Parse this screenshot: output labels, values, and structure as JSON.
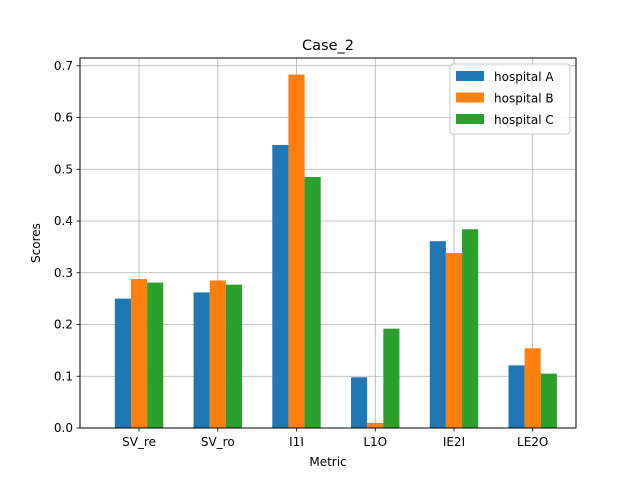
{
  "chart_data": {
    "type": "bar",
    "title": "Case_2",
    "xlabel": "Metric",
    "ylabel": "Scores",
    "categories": [
      "SV_re",
      "SV_ro",
      "I1I",
      "L1O",
      "IE2I",
      "LE2O"
    ],
    "series": [
      {
        "name": "hospital A",
        "color": "#1f77b4",
        "values": [
          0.25,
          0.262,
          0.547,
          0.098,
          0.361,
          0.121
        ]
      },
      {
        "name": "hospital B",
        "color": "#ff7f0e",
        "values": [
          0.288,
          0.285,
          0.683,
          0.01,
          0.338,
          0.154
        ]
      },
      {
        "name": "hospital C",
        "color": "#2ca02c",
        "values": [
          0.281,
          0.277,
          0.485,
          0.192,
          0.384,
          0.105
        ]
      }
    ],
    "ylim": [
      0,
      0.715
    ],
    "yticks": [
      "0.0",
      "0.1",
      "0.2",
      "0.3",
      "0.4",
      "0.5",
      "0.6",
      "0.7"
    ],
    "grid": true,
    "legend_position": "top-right"
  }
}
